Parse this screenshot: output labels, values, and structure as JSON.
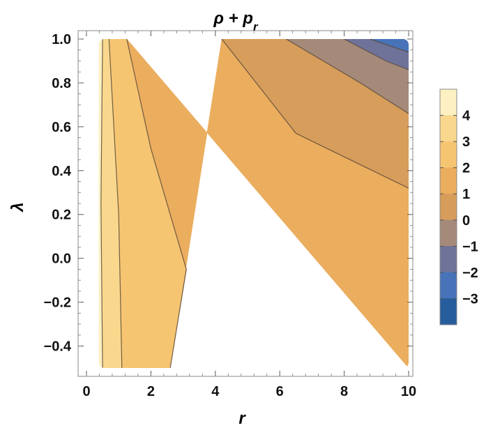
{
  "chart_data": {
    "type": "heatmap",
    "subtype": "contour",
    "title": "ρ + p",
    "title_subscript": "r",
    "xlabel": "r",
    "ylabel": "λ",
    "xlim": [
      0,
      10
    ],
    "ylim": [
      -0.5,
      1.0
    ],
    "x_ticks": [
      "0",
      "2",
      "4",
      "6",
      "8",
      "10"
    ],
    "y_ticks": [
      "−0.4",
      "−0.2",
      "0.0",
      "0.2",
      "0.4",
      "0.6",
      "0.8",
      "1.0"
    ],
    "colorbar": {
      "ticks": [
        "4",
        "3",
        "2",
        "1",
        "0",
        "−1",
        "−2",
        "−3"
      ],
      "levels": [
        5,
        4,
        3,
        2,
        1,
        0,
        -1,
        -2,
        -3,
        -4
      ],
      "colors": [
        "#fdf1c3",
        "#f9d88e",
        "#f6c572",
        "#ebad5e",
        "#d69d5b",
        "#a58a7a",
        "#6f739a",
        "#4873b9",
        "#275d9d"
      ]
    },
    "contour_lines": [
      {
        "level": 4,
        "points": [
          [
            0.5,
            -0.5
          ],
          [
            0.45,
            0.25
          ],
          [
            0.5,
            1.0
          ]
        ]
      },
      {
        "level": 3,
        "points": [
          [
            1.1,
            -0.5
          ],
          [
            1.0,
            0.2
          ],
          [
            0.7,
            1.0
          ]
        ]
      },
      {
        "level": 2,
        "points": [
          [
            2.6,
            -0.5
          ],
          [
            3.1,
            -0.05
          ],
          [
            2.0,
            0.5
          ],
          [
            1.25,
            1.0
          ]
        ]
      },
      {
        "level": 1,
        "points": [
          [
            4.2,
            1.0
          ],
          [
            6.5,
            0.57
          ],
          [
            10,
            0.32
          ]
        ]
      },
      {
        "level": 0,
        "points": [
          [
            6.2,
            1.0
          ],
          [
            8.5,
            0.8
          ],
          [
            10,
            0.66
          ]
        ]
      },
      {
        "level": -1,
        "points": [
          [
            8.0,
            1.0
          ],
          [
            9.3,
            0.9
          ],
          [
            10,
            0.86
          ]
        ]
      },
      {
        "level": -2,
        "points": [
          [
            8.8,
            1.0
          ],
          [
            10,
            0.94
          ]
        ]
      }
    ],
    "grid": false,
    "legend": "right"
  }
}
